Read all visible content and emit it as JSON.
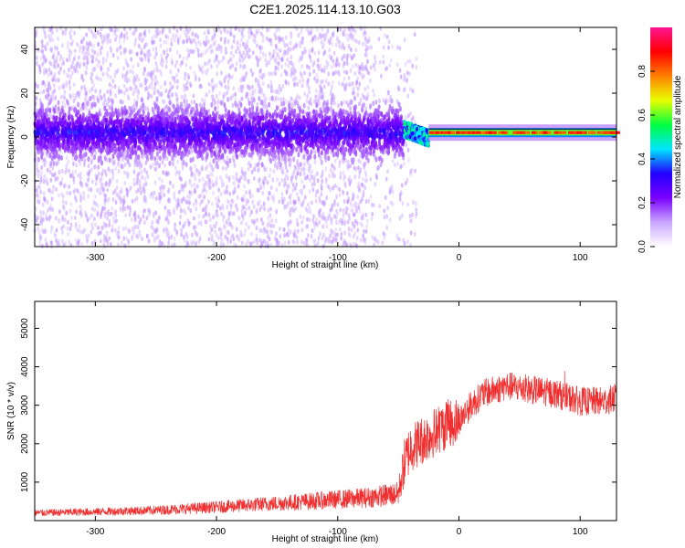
{
  "title": "C2E1.2025.114.13.10.G03",
  "chart_data": [
    {
      "type": "heatmap",
      "xlabel": "Height of straight line (km)",
      "ylabel": "Frequency (Hz)",
      "xlim": [
        -350,
        130
      ],
      "ylim": [
        -50,
        50
      ],
      "x_ticks": [
        -300,
        -200,
        -100,
        0,
        100
      ],
      "y_ticks": [
        -40,
        -20,
        0,
        20,
        40
      ],
      "colorbar": {
        "label": "Normalized spectral amplitude",
        "range": [
          0,
          1
        ],
        "ticks": [
          "0.0",
          "0.2",
          "0.4",
          "0.6",
          "0.8"
        ],
        "colors": [
          "#ffffff",
          "#c9a6ff",
          "#7a00ff",
          "#2200ff",
          "#00e5ff",
          "#00ff40",
          "#e8ff00",
          "#ff8000",
          "#ff0000",
          "#ff1493"
        ]
      },
      "features": [
        {
          "x_range": [
            -350,
            -45
          ],
          "band_hz": [
            -10,
            10
          ],
          "amplitude": 0.2,
          "scatter_hz": [
            -50,
            50
          ]
        },
        {
          "x_range": [
            -45,
            -25
          ],
          "band_hz": [
            0,
            7
          ],
          "amplitude": 0.45
        },
        {
          "x_range": [
            -25,
            130
          ],
          "line_hz": 2,
          "amplitude": 0.85
        }
      ]
    },
    {
      "type": "line",
      "xlabel": "Height of straight line (km)",
      "ylabel": "SNR (10 * v/v)",
      "xlim": [
        -350,
        130
      ],
      "ylim": [
        0,
        5700
      ],
      "x_ticks": [
        -300,
        -200,
        -100,
        0,
        100
      ],
      "y_ticks": [
        1000,
        2000,
        3000,
        4000,
        5000
      ],
      "series": [
        {
          "color": "#f03030",
          "x": [
            -350,
            -300,
            -250,
            -200,
            -150,
            -100,
            -75,
            -50,
            -45,
            -40,
            -30,
            -20,
            -10,
            0,
            10,
            20,
            30,
            40,
            50,
            60,
            70,
            80,
            90,
            100,
            110,
            120,
            130
          ],
          "y": [
            200,
            230,
            270,
            350,
            450,
            550,
            600,
            700,
            1500,
            1900,
            2100,
            2300,
            2500,
            2600,
            3000,
            3300,
            3400,
            3500,
            3450,
            3400,
            3350,
            3300,
            3200,
            3100,
            3100,
            3100,
            3200
          ]
        }
      ]
    }
  ]
}
